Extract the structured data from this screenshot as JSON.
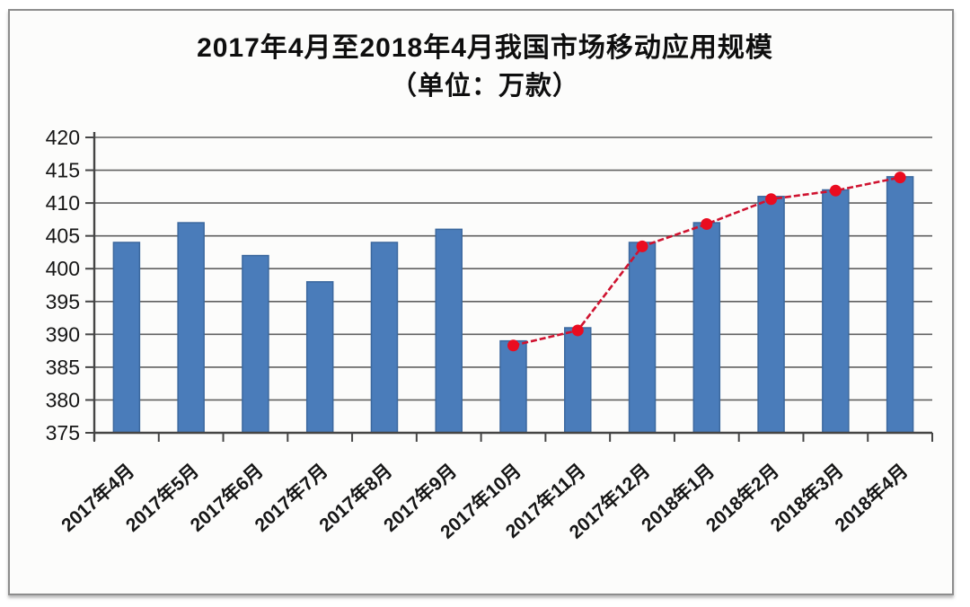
{
  "frame": {
    "border_color": "#8d8d8d",
    "background": "#fcfcfb"
  },
  "chart_data": {
    "type": "bar",
    "title": "2017年4月至2018年4月我国市场移动应用规模",
    "subtitle": "（单位：万款）",
    "categories": [
      "2017年4月",
      "2017年5月",
      "2017年6月",
      "2017年7月",
      "2017年8月",
      "2017年9月",
      "2017年10月",
      "2017年11月",
      "2017年12月",
      "2018年1月",
      "2018年2月",
      "2018年3月",
      "2018年4月"
    ],
    "series": [
      {
        "name": "移动应用规模（万款）",
        "type": "bar",
        "color": "#4a7cba",
        "border_color": "#3c689e",
        "values": [
          404,
          407,
          402,
          398,
          404,
          406,
          389,
          391,
          404,
          407,
          411,
          412,
          414
        ]
      },
      {
        "name": "移动应用规模趋势线",
        "type": "line",
        "color": "#cf1330",
        "marker_color": "#ea0c20",
        "x_start_index": 6,
        "values": [
          388.3,
          390.6,
          403.4,
          406.8,
          410.6,
          411.9,
          413.9
        ]
      }
    ],
    "xlabel": "",
    "ylabel": "",
    "ylim": [
      375,
      420
    ],
    "yticks": [
      375,
      380,
      385,
      390,
      395,
      400,
      405,
      410,
      415,
      420
    ],
    "grid": true,
    "legend_position": "none",
    "grid_color": "#606060",
    "axis_color": "#454545",
    "tick_label_color": "#161616"
  }
}
